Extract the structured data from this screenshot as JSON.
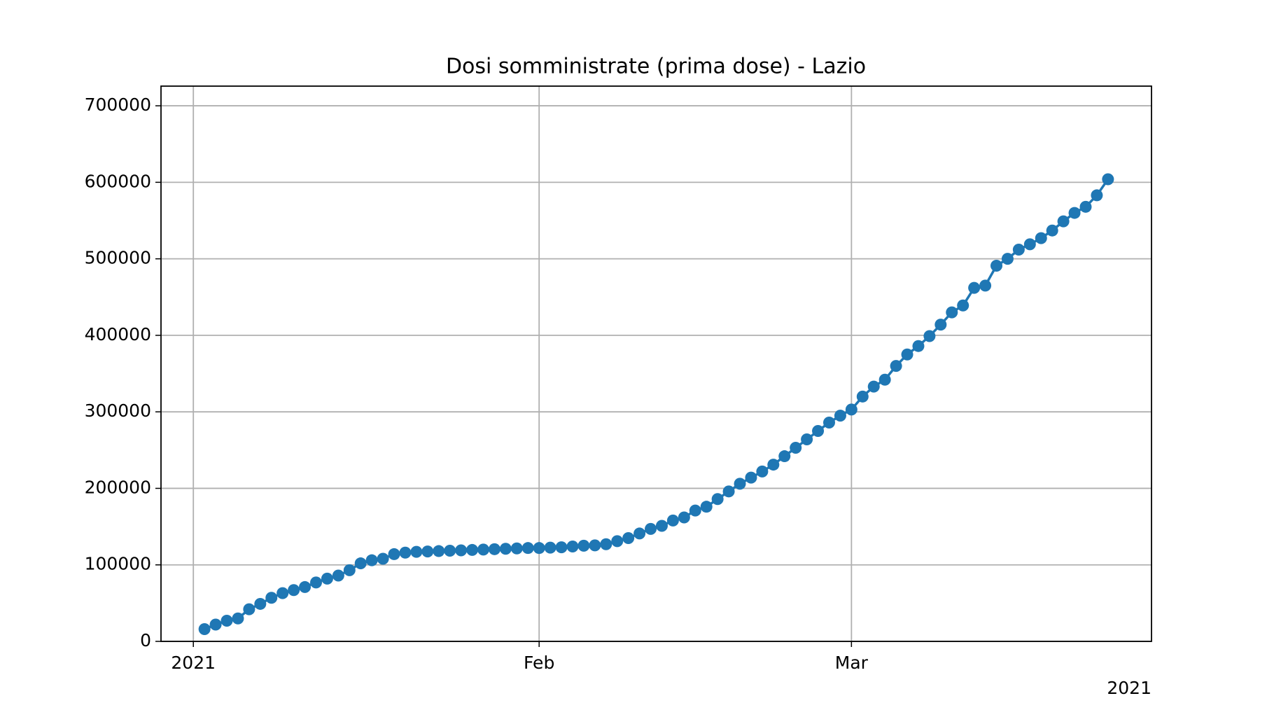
{
  "chart_data": {
    "type": "line",
    "title": "Dosi somministrate (prima dose) - Lazio",
    "x": [
      1,
      2,
      3,
      4,
      5,
      6,
      7,
      8,
      9,
      10,
      11,
      12,
      13,
      14,
      15,
      16,
      17,
      18,
      19,
      20,
      21,
      22,
      23,
      24,
      25,
      26,
      27,
      28,
      29,
      30,
      31,
      32,
      33,
      34,
      35,
      36,
      37,
      38,
      39,
      40,
      41,
      42,
      43,
      44,
      45,
      46,
      47,
      48,
      49,
      50,
      51,
      52,
      53,
      54,
      55,
      56,
      57,
      58,
      59,
      60,
      61,
      62,
      63,
      64,
      65,
      66,
      67,
      68,
      69,
      70,
      71,
      72,
      73,
      74,
      75,
      76,
      77,
      78,
      79,
      80,
      81,
      82
    ],
    "values": [
      16000,
      22000,
      27000,
      30000,
      42000,
      49000,
      57000,
      63000,
      67000,
      71000,
      77000,
      82000,
      86000,
      93000,
      102000,
      106000,
      108000,
      114000,
      116000,
      117000,
      117500,
      118000,
      118500,
      119000,
      119500,
      120000,
      120500,
      121000,
      121500,
      122000,
      122000,
      122500,
      123000,
      124000,
      125000,
      125500,
      127000,
      131000,
      135000,
      141000,
      147000,
      151000,
      158000,
      162000,
      171000,
      176000,
      186000,
      196000,
      206000,
      214000,
      222000,
      231000,
      242000,
      253000,
      264000,
      275000,
      286000,
      295000,
      303000,
      320000,
      333000,
      342000,
      360000,
      375000,
      386000,
      399000,
      414000,
      430000,
      439000,
      462000,
      465000,
      491000,
      500000,
      512000,
      519000,
      527000,
      537000,
      549000,
      560000,
      568000,
      583000,
      604000
    ],
    "color": "#1f77b4",
    "xlim": [
      -2.9,
      85.9
    ],
    "xticks": [
      {
        "value": 0,
        "label": "2021"
      },
      {
        "value": 31,
        "label": "Feb"
      },
      {
        "value": 59,
        "label": "Mar"
      }
    ],
    "x_offset_label": "2021",
    "ylim": [
      0,
      725700
    ],
    "yticks": [
      0,
      100000,
      200000,
      300000,
      400000,
      500000,
      600000,
      700000
    ],
    "grid": true
  }
}
